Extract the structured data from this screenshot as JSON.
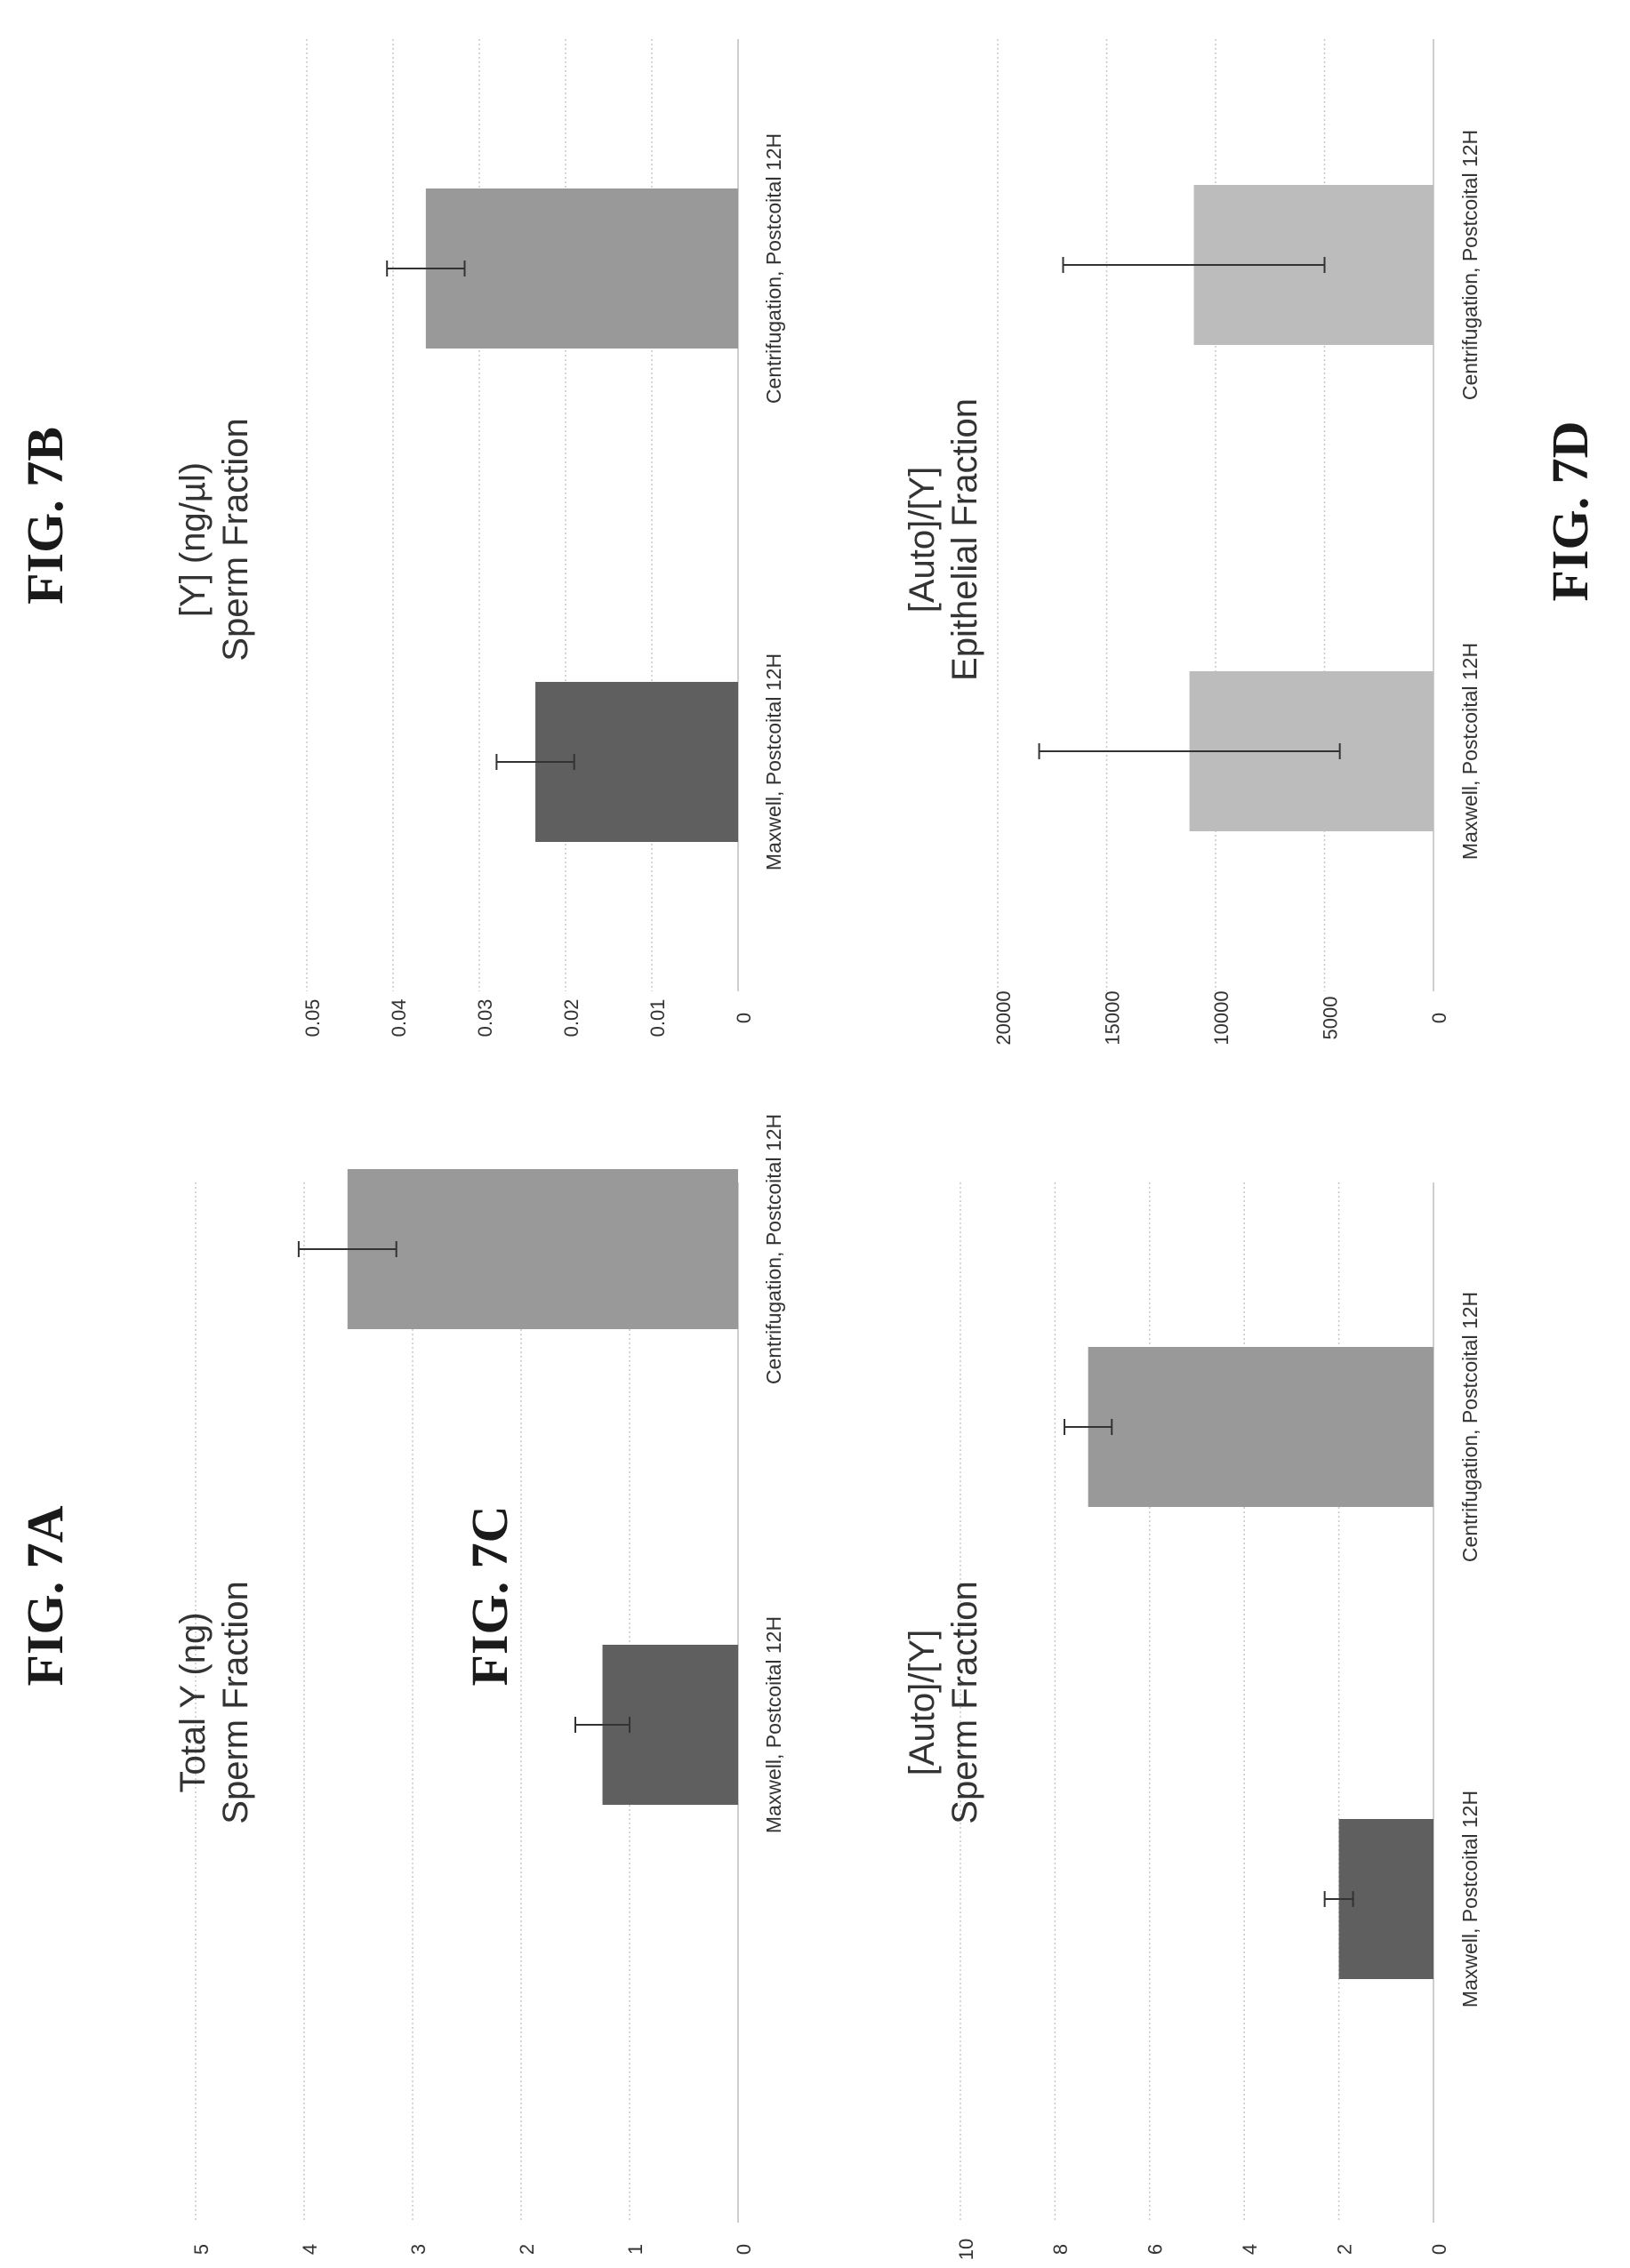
{
  "figure_labels": {
    "a": "FIG. 7A",
    "b": "FIG. 7B",
    "c": "FIG. 7C",
    "d": "FIG. 7D"
  },
  "chart_data": [
    {
      "id": "a",
      "type": "bar",
      "title": [
        "Total Y (ng)",
        "Sperm Fraction"
      ],
      "categories": [
        "Maxwell, Postcoital 12H",
        "Centrifugation, Postcoital 12H"
      ],
      "values": [
        1.25,
        3.6
      ],
      "errors": [
        0.25,
        0.45
      ],
      "colors": [
        "#5f5f5f",
        "#999999"
      ],
      "ylim": [
        0,
        5
      ],
      "ticks": [
        "0",
        "1",
        "2",
        "3",
        "4",
        "5"
      ],
      "grid": true
    },
    {
      "id": "b",
      "type": "bar",
      "title": [
        "[Y] (ng/µl)",
        "Sperm Fraction"
      ],
      "categories": [
        "Maxwell, Postcoital 12H",
        "Centrifugation, Postcoital 12H"
      ],
      "values": [
        0.0235,
        0.0362
      ],
      "errors": [
        0.0045,
        0.0045
      ],
      "colors": [
        "#5f5f5f",
        "#999999"
      ],
      "ylim": [
        0,
        0.05
      ],
      "ticks": [
        "0",
        "0.01",
        "0.02",
        "0.03",
        "0.04",
        "0.05"
      ],
      "grid": true
    },
    {
      "id": "c",
      "type": "bar",
      "title": [
        "[Auto]/[Y]",
        "Sperm Fraction"
      ],
      "categories": [
        "Maxwell, Postcoital 12H",
        "Centrifugation, Postcoital 12H"
      ],
      "values": [
        2.0,
        7.3
      ],
      "errors": [
        0.3,
        0.5
      ],
      "colors": [
        "#5f5f5f",
        "#999999"
      ],
      "ylim": [
        0,
        10
      ],
      "ticks": [
        "0",
        "2",
        "4",
        "6",
        "8",
        "10"
      ],
      "grid": true
    },
    {
      "id": "d",
      "type": "bar",
      "title": [
        "[Auto]/[Y]",
        "Epithelial Fraction"
      ],
      "categories": [
        "Maxwell, Postcoital 12H",
        "Centrifugation, Postcoital 12H"
      ],
      "values": [
        11200,
        11000
      ],
      "errors": [
        6900,
        6000
      ],
      "colors": [
        "#bcbcbc",
        "#bcbcbc"
      ],
      "ylim": [
        0,
        20000
      ],
      "ticks": [
        "0",
        "5000",
        "10000",
        "15000",
        "20000"
      ],
      "grid": true
    }
  ]
}
